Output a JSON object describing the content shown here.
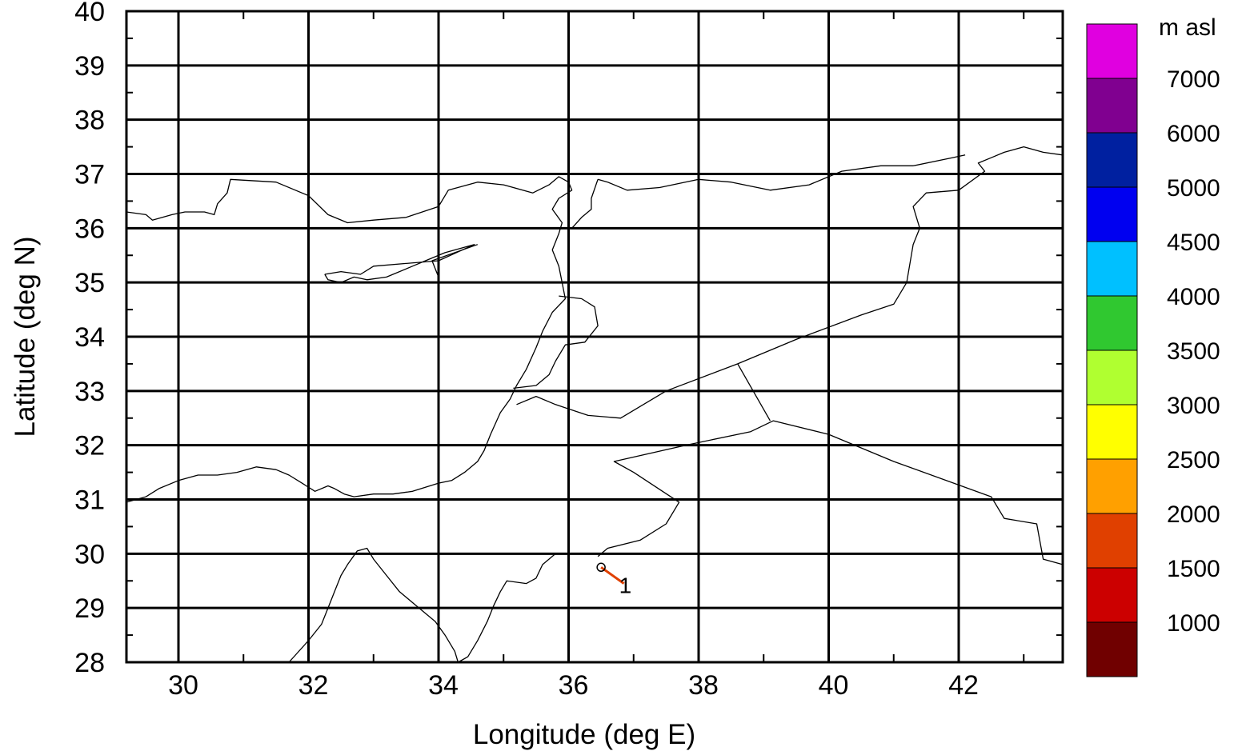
{
  "map": {
    "xlabel": "Longitude (deg E)",
    "ylabel": "Latitude (deg N)",
    "xlim": [
      29.2,
      43.6
    ],
    "ylim": [
      28,
      40
    ],
    "x_ticks": [
      30,
      32,
      34,
      36,
      38,
      40,
      42
    ],
    "x_gridlines": [
      30,
      32,
      34,
      36,
      38,
      40,
      42
    ],
    "y_ticks": [
      28,
      29,
      30,
      31,
      32,
      33,
      34,
      35,
      36,
      37,
      38,
      39,
      40
    ],
    "y_gridlines": [
      29,
      30,
      31,
      32,
      33,
      34,
      35,
      36,
      37,
      38,
      39
    ],
    "x_minor_step": 1,
    "y_minor_step": 0.5,
    "trajectory": {
      "label": "1",
      "color": "#e04000",
      "points": [
        [
          36.5,
          29.75
        ],
        [
          36.85,
          29.45
        ]
      ]
    },
    "coastlines": [
      [
        [
          29.2,
          36.3
        ],
        [
          29.5,
          36.25
        ],
        [
          29.6,
          36.15
        ],
        [
          29.9,
          36.25
        ],
        [
          30.1,
          36.3
        ],
        [
          30.4,
          36.3
        ],
        [
          30.55,
          36.25
        ],
        [
          30.6,
          36.45
        ],
        [
          30.75,
          36.65
        ],
        [
          30.8,
          36.9
        ],
        [
          31.5,
          36.85
        ],
        [
          32,
          36.6
        ],
        [
          32.3,
          36.25
        ],
        [
          32.6,
          36.1
        ],
        [
          33,
          36.15
        ],
        [
          33.5,
          36.2
        ],
        [
          34,
          36.4
        ],
        [
          34.15,
          36.7
        ],
        [
          34.6,
          36.85
        ],
        [
          35,
          36.8
        ],
        [
          35.45,
          36.65
        ],
        [
          35.7,
          36.8
        ],
        [
          35.85,
          36.95
        ],
        [
          36.0,
          36.85
        ],
        [
          36.05,
          36.7
        ],
        [
          35.85,
          36.55
        ],
        [
          35.75,
          36.35
        ],
        [
          35.9,
          36.1
        ],
        [
          35.85,
          35.9
        ],
        [
          35.75,
          35.6
        ],
        [
          35.85,
          35.3
        ],
        [
          35.9,
          35.0
        ],
        [
          35.95,
          34.7
        ],
        [
          35.75,
          34.45
        ],
        [
          35.6,
          34.1
        ],
        [
          35.5,
          33.8
        ],
        [
          35.35,
          33.4
        ],
        [
          35.2,
          33.1
        ],
        [
          35.1,
          32.85
        ],
        [
          34.95,
          32.6
        ],
        [
          34.8,
          32.2
        ],
        [
          34.7,
          31.9
        ],
        [
          34.6,
          31.7
        ],
        [
          34.4,
          31.5
        ],
        [
          34.2,
          31.35
        ],
        [
          34.0,
          31.3
        ],
        [
          33.6,
          31.15
        ],
        [
          33.3,
          31.1
        ],
        [
          33.0,
          31.1
        ],
        [
          32.7,
          31.05
        ],
        [
          32.55,
          31.1
        ],
        [
          32.4,
          31.2
        ],
        [
          32.3,
          31.25
        ],
        [
          32.1,
          31.15
        ],
        [
          31.9,
          31.3
        ],
        [
          31.7,
          31.45
        ],
        [
          31.5,
          31.55
        ],
        [
          31.2,
          31.6
        ],
        [
          30.9,
          31.5
        ],
        [
          30.6,
          31.45
        ],
        [
          30.3,
          31.45
        ],
        [
          30.0,
          31.35
        ],
        [
          29.7,
          31.2
        ],
        [
          29.5,
          31.05
        ],
        [
          29.2,
          30.95
        ]
      ],
      [
        [
          32.25,
          35.15
        ],
        [
          32.5,
          35.2
        ],
        [
          32.8,
          35.15
        ],
        [
          33.0,
          35.3
        ],
        [
          33.5,
          35.35
        ],
        [
          34.0,
          35.4
        ],
        [
          34.55,
          35.7
        ],
        [
          34.1,
          35.55
        ],
        [
          33.8,
          35.4
        ],
        [
          33.6,
          35.3
        ],
        [
          33.2,
          35.1
        ],
        [
          32.9,
          35.05
        ],
        [
          32.7,
          35.1
        ],
        [
          32.5,
          35.0
        ],
        [
          32.3,
          35.05
        ],
        [
          32.25,
          35.15
        ]
      ],
      [
        [
          34.6,
          35.7
        ],
        [
          33.9,
          35.4
        ],
        [
          34.0,
          35.1
        ]
      ],
      [
        [
          35.8,
          30.0
        ],
        [
          35.6,
          29.8
        ],
        [
          35.5,
          29.55
        ],
        [
          35.35,
          29.45
        ],
        [
          35.05,
          29.5
        ],
        [
          34.95,
          29.3
        ],
        [
          34.85,
          29.05
        ],
        [
          34.75,
          28.75
        ],
        [
          34.6,
          28.4
        ],
        [
          34.45,
          28.1
        ],
        [
          34.3,
          28.0
        ]
      ],
      [
        [
          34.3,
          28.0
        ],
        [
          34.25,
          28.2
        ],
        [
          34.1,
          28.5
        ],
        [
          33.95,
          28.75
        ],
        [
          33.7,
          29.0
        ],
        [
          33.4,
          29.3
        ],
        [
          33.2,
          29.6
        ],
        [
          33.0,
          29.9
        ],
        [
          32.9,
          30.1
        ],
        [
          32.75,
          30.05
        ],
        [
          32.6,
          29.8
        ],
        [
          32.5,
          29.6
        ],
        [
          32.4,
          29.3
        ],
        [
          32.3,
          29.0
        ],
        [
          32.2,
          28.7
        ],
        [
          32.0,
          28.4
        ],
        [
          31.7,
          28.0
        ]
      ],
      [
        [
          36.45,
          29.95
        ],
        [
          36.6,
          30.1
        ],
        [
          37.1,
          30.25
        ],
        [
          37.5,
          30.55
        ],
        [
          37.65,
          30.85
        ],
        [
          37.7,
          30.95
        ],
        [
          37.0,
          31.5
        ],
        [
          36.7,
          31.7
        ],
        [
          37.8,
          32.0
        ],
        [
          38.8,
          32.25
        ],
        [
          39.15,
          32.45
        ],
        [
          40.0,
          32.2
        ],
        [
          41.0,
          31.7
        ],
        [
          42.5,
          31.05
        ],
        [
          42.7,
          30.65
        ],
        [
          43.2,
          30.55
        ],
        [
          43.3,
          29.9
        ],
        [
          43.6,
          29.8
        ]
      ],
      [
        [
          38.6,
          33.5
        ],
        [
          39.1,
          32.45
        ]
      ],
      [
        [
          35.2,
          32.75
        ],
        [
          35.5,
          32.9
        ],
        [
          35.8,
          32.75
        ],
        [
          36.3,
          32.55
        ],
        [
          36.8,
          32.5
        ],
        [
          37.5,
          33.0
        ],
        [
          38.6,
          33.5
        ],
        [
          39.5,
          33.95
        ],
        [
          40.5,
          34.4
        ],
        [
          41.0,
          34.6
        ],
        [
          41.2,
          35.0
        ],
        [
          41.3,
          35.7
        ],
        [
          41.4,
          36.0
        ],
        [
          41.3,
          36.4
        ],
        [
          41.5,
          36.65
        ],
        [
          42.0,
          36.7
        ],
        [
          42.4,
          37.05
        ],
        [
          42.3,
          37.2
        ],
        [
          42.5,
          37.3
        ],
        [
          42.7,
          37.4
        ],
        [
          43.0,
          37.5
        ],
        [
          43.3,
          37.4
        ],
        [
          43.6,
          37.35
        ]
      ],
      [
        [
          36.45,
          36.9
        ],
        [
          36.6,
          36.85
        ],
        [
          36.9,
          36.7
        ],
        [
          37.4,
          36.75
        ],
        [
          38.0,
          36.9
        ],
        [
          38.5,
          36.85
        ],
        [
          39.1,
          36.7
        ],
        [
          39.7,
          36.8
        ],
        [
          40.2,
          37.05
        ],
        [
          40.8,
          37.15
        ],
        [
          41.3,
          37.15
        ],
        [
          41.9,
          37.3
        ],
        [
          42.1,
          37.35
        ]
      ],
      [
        [
          36.45,
          36.9
        ],
        [
          36.35,
          36.55
        ],
        [
          36.35,
          36.35
        ],
        [
          36.2,
          36.2
        ],
        [
          36.05,
          36.0
        ]
      ],
      [
        [
          35.85,
          34.75
        ],
        [
          36.2,
          34.7
        ],
        [
          36.4,
          34.55
        ],
        [
          36.45,
          34.2
        ],
        [
          36.25,
          33.9
        ],
        [
          35.95,
          33.85
        ],
        [
          35.8,
          33.55
        ],
        [
          35.7,
          33.3
        ],
        [
          35.5,
          33.1
        ],
        [
          35.15,
          33.05
        ]
      ]
    ]
  },
  "legend": {
    "title": "m asl",
    "labels": [
      "7000",
      "6000",
      "5000",
      "4500",
      "4000",
      "3500",
      "3000",
      "2500",
      "2000",
      "1500",
      "1000"
    ],
    "colors": [
      "#e000e0",
      "#800090",
      "#0020a0",
      "#0000f0",
      "#00c0ff",
      "#30c830",
      "#b0ff30",
      "#ffff00",
      "#ffa000",
      "#e04000",
      "#cc0000",
      "#700000"
    ]
  }
}
